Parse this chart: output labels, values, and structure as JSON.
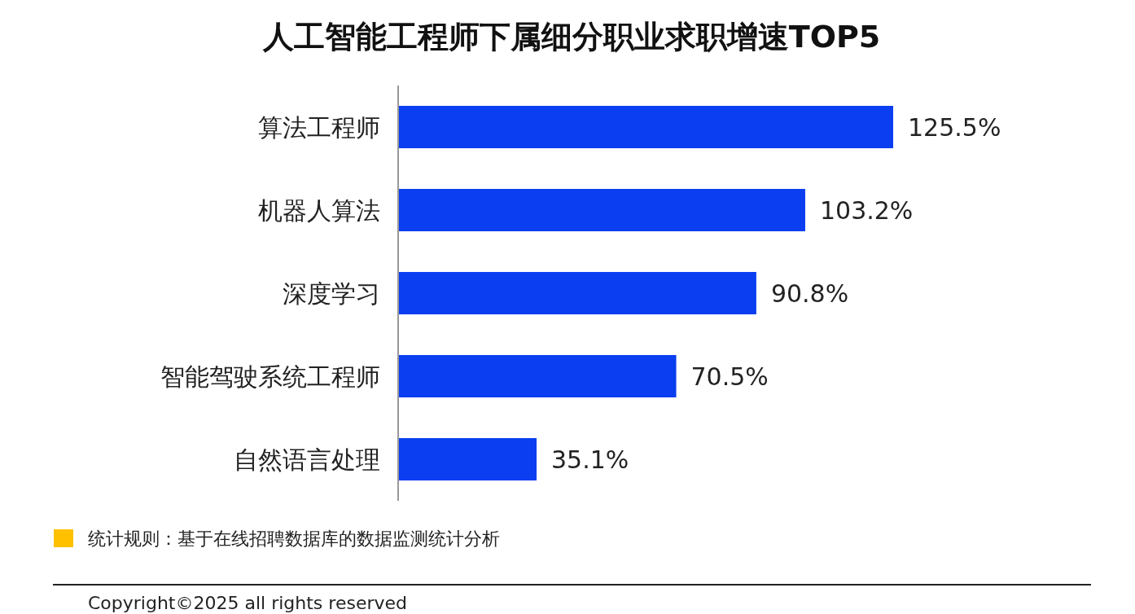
{
  "chart_data": {
    "type": "bar",
    "orientation": "horizontal",
    "title": "人工智能工程师下属细分职业求职增速TOP5",
    "categories": [
      "算法工程师",
      "机器人算法",
      "深度学习",
      "智能驾驶系统工程师",
      "自然语言处理"
    ],
    "values": [
      125.5,
      103.2,
      90.8,
      70.5,
      35.1
    ],
    "value_labels": [
      "125.5%",
      "103.2%",
      "90.8%",
      "70.5%",
      "35.1%"
    ],
    "color": "#0a3ef0",
    "annotations": [
      "统计规则：基于在线招聘数据库的数据监测统计分析",
      "Copyright©2025 all rights reserved"
    ]
  }
}
